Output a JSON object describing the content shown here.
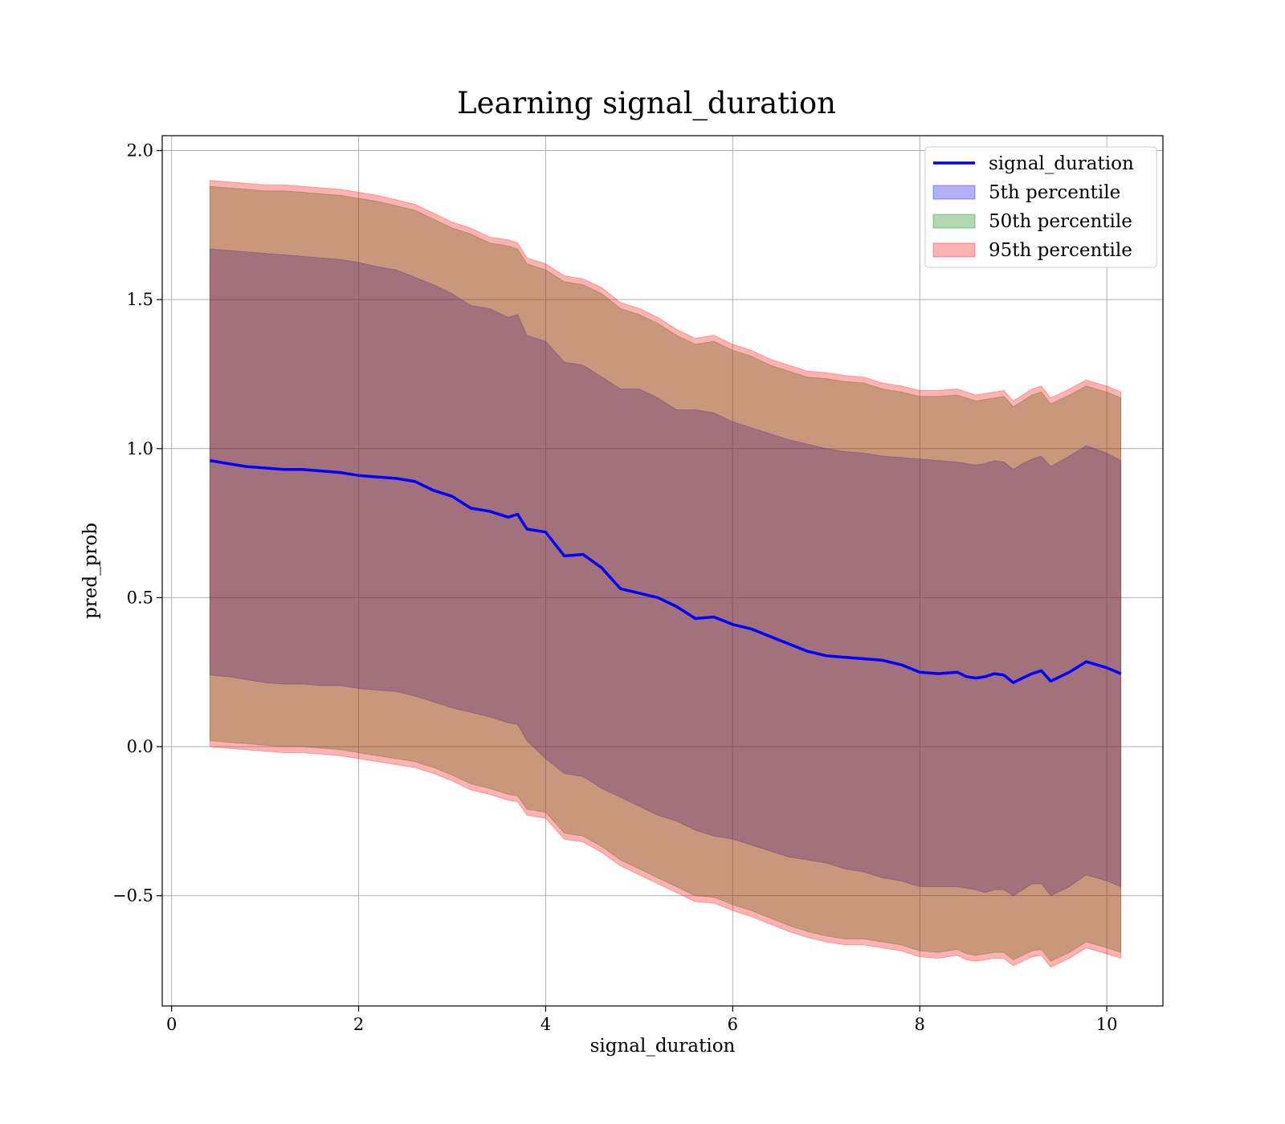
{
  "chart_data": {
    "type": "area",
    "title": "Learning signal_duration",
    "xlabel": "signal_duration",
    "ylabel": "pred_prob",
    "xlim": [
      -0.1,
      10.6
    ],
    "ylim": [
      -0.87,
      2.05
    ],
    "xticks": [
      0,
      2,
      4,
      6,
      8,
      10
    ],
    "yticks": [
      -0.5,
      0.0,
      0.5,
      1.0,
      1.5,
      2.0
    ],
    "ytick_labels": [
      "−0.5",
      "0.0",
      "0.5",
      "1.0",
      "1.5",
      "2.0"
    ],
    "grid": true,
    "legend_position": "top-right",
    "x": [
      0.41,
      0.6,
      0.8,
      1.0,
      1.2,
      1.4,
      1.6,
      1.8,
      2.0,
      2.2,
      2.4,
      2.6,
      2.8,
      3.0,
      3.2,
      3.4,
      3.6,
      3.7,
      3.8,
      4.0,
      4.2,
      4.4,
      4.6,
      4.8,
      5.0,
      5.2,
      5.4,
      5.6,
      5.8,
      6.0,
      6.2,
      6.4,
      6.6,
      6.8,
      7.0,
      7.2,
      7.4,
      7.6,
      7.8,
      8.0,
      8.2,
      8.4,
      8.5,
      8.6,
      8.7,
      8.8,
      8.9,
      9.0,
      9.1,
      9.2,
      9.3,
      9.4,
      9.6,
      9.78,
      10.0,
      10.15
    ],
    "series": [
      {
        "name": "signal_duration",
        "kind": "line",
        "color": "#0000ff",
        "values": [
          0.96,
          0.95,
          0.94,
          0.935,
          0.93,
          0.93,
          0.925,
          0.92,
          0.91,
          0.905,
          0.9,
          0.89,
          0.86,
          0.84,
          0.8,
          0.79,
          0.77,
          0.78,
          0.73,
          0.72,
          0.64,
          0.645,
          0.6,
          0.53,
          0.515,
          0.5,
          0.47,
          0.43,
          0.435,
          0.41,
          0.395,
          0.37,
          0.345,
          0.32,
          0.305,
          0.3,
          0.295,
          0.29,
          0.275,
          0.25,
          0.245,
          0.25,
          0.235,
          0.23,
          0.235,
          0.245,
          0.24,
          0.215,
          0.23,
          0.245,
          0.255,
          0.22,
          0.25,
          0.285,
          0.265,
          0.245
        ]
      },
      {
        "name": "5th percentile",
        "kind": "band",
        "color": "#0000ff",
        "alpha": 0.3,
        "upper": [
          1.67,
          1.665,
          1.66,
          1.655,
          1.65,
          1.645,
          1.64,
          1.635,
          1.625,
          1.61,
          1.6,
          1.575,
          1.55,
          1.52,
          1.48,
          1.47,
          1.44,
          1.45,
          1.38,
          1.36,
          1.29,
          1.28,
          1.24,
          1.2,
          1.2,
          1.17,
          1.13,
          1.13,
          1.12,
          1.09,
          1.07,
          1.05,
          1.03,
          1.015,
          1.0,
          0.99,
          0.985,
          0.975,
          0.97,
          0.965,
          0.96,
          0.955,
          0.95,
          0.945,
          0.95,
          0.96,
          0.955,
          0.93,
          0.95,
          0.965,
          0.975,
          0.94,
          0.975,
          1.01,
          0.985,
          0.96
        ],
        "lower": [
          0.24,
          0.235,
          0.225,
          0.215,
          0.21,
          0.21,
          0.205,
          0.205,
          0.195,
          0.19,
          0.185,
          0.17,
          0.15,
          0.13,
          0.115,
          0.1,
          0.08,
          0.075,
          0.02,
          -0.04,
          -0.09,
          -0.1,
          -0.14,
          -0.17,
          -0.2,
          -0.23,
          -0.25,
          -0.28,
          -0.3,
          -0.31,
          -0.33,
          -0.35,
          -0.37,
          -0.38,
          -0.39,
          -0.41,
          -0.42,
          -0.44,
          -0.45,
          -0.47,
          -0.47,
          -0.47,
          -0.475,
          -0.48,
          -0.49,
          -0.48,
          -0.48,
          -0.5,
          -0.48,
          -0.46,
          -0.46,
          -0.5,
          -0.47,
          -0.43,
          -0.45,
          -0.47
        ]
      },
      {
        "name": "50th percentile",
        "kind": "band",
        "color": "#008000",
        "alpha": 0.3,
        "upper": [
          1.88,
          1.875,
          1.87,
          1.865,
          1.865,
          1.86,
          1.855,
          1.85,
          1.84,
          1.83,
          1.815,
          1.8,
          1.77,
          1.74,
          1.72,
          1.69,
          1.68,
          1.67,
          1.62,
          1.6,
          1.56,
          1.55,
          1.52,
          1.47,
          1.45,
          1.42,
          1.38,
          1.35,
          1.36,
          1.33,
          1.31,
          1.28,
          1.26,
          1.24,
          1.235,
          1.225,
          1.22,
          1.2,
          1.19,
          1.175,
          1.175,
          1.18,
          1.17,
          1.16,
          1.165,
          1.17,
          1.175,
          1.14,
          1.16,
          1.18,
          1.19,
          1.15,
          1.18,
          1.21,
          1.19,
          1.17
        ],
        "lower": [
          0.02,
          0.015,
          0.01,
          0.005,
          0.0,
          0.0,
          -0.005,
          -0.01,
          -0.02,
          -0.03,
          -0.04,
          -0.05,
          -0.07,
          -0.095,
          -0.125,
          -0.14,
          -0.16,
          -0.165,
          -0.21,
          -0.22,
          -0.29,
          -0.3,
          -0.335,
          -0.38,
          -0.41,
          -0.44,
          -0.47,
          -0.5,
          -0.505,
          -0.53,
          -0.55,
          -0.575,
          -0.6,
          -0.62,
          -0.635,
          -0.645,
          -0.645,
          -0.655,
          -0.665,
          -0.685,
          -0.69,
          -0.68,
          -0.695,
          -0.7,
          -0.695,
          -0.69,
          -0.69,
          -0.715,
          -0.7,
          -0.685,
          -0.68,
          -0.72,
          -0.69,
          -0.655,
          -0.675,
          -0.69
        ]
      },
      {
        "name": "95th percentile",
        "kind": "band",
        "color": "#ff0000",
        "alpha": 0.3,
        "upper": [
          1.9,
          1.895,
          1.89,
          1.885,
          1.885,
          1.88,
          1.875,
          1.87,
          1.86,
          1.85,
          1.835,
          1.82,
          1.79,
          1.76,
          1.74,
          1.71,
          1.7,
          1.69,
          1.64,
          1.62,
          1.58,
          1.57,
          1.54,
          1.49,
          1.47,
          1.44,
          1.4,
          1.37,
          1.38,
          1.35,
          1.33,
          1.3,
          1.28,
          1.26,
          1.255,
          1.245,
          1.24,
          1.22,
          1.21,
          1.195,
          1.195,
          1.2,
          1.19,
          1.18,
          1.185,
          1.19,
          1.195,
          1.16,
          1.18,
          1.2,
          1.21,
          1.17,
          1.2,
          1.23,
          1.21,
          1.19
        ],
        "lower": [
          0.0,
          -0.005,
          -0.01,
          -0.015,
          -0.02,
          -0.02,
          -0.025,
          -0.03,
          -0.04,
          -0.05,
          -0.06,
          -0.07,
          -0.09,
          -0.115,
          -0.145,
          -0.16,
          -0.18,
          -0.185,
          -0.23,
          -0.24,
          -0.31,
          -0.32,
          -0.355,
          -0.4,
          -0.43,
          -0.46,
          -0.49,
          -0.52,
          -0.525,
          -0.55,
          -0.57,
          -0.595,
          -0.62,
          -0.64,
          -0.655,
          -0.665,
          -0.665,
          -0.675,
          -0.685,
          -0.705,
          -0.71,
          -0.7,
          -0.715,
          -0.72,
          -0.715,
          -0.71,
          -0.71,
          -0.735,
          -0.72,
          -0.705,
          -0.7,
          -0.74,
          -0.71,
          -0.675,
          -0.695,
          -0.71
        ]
      }
    ]
  }
}
